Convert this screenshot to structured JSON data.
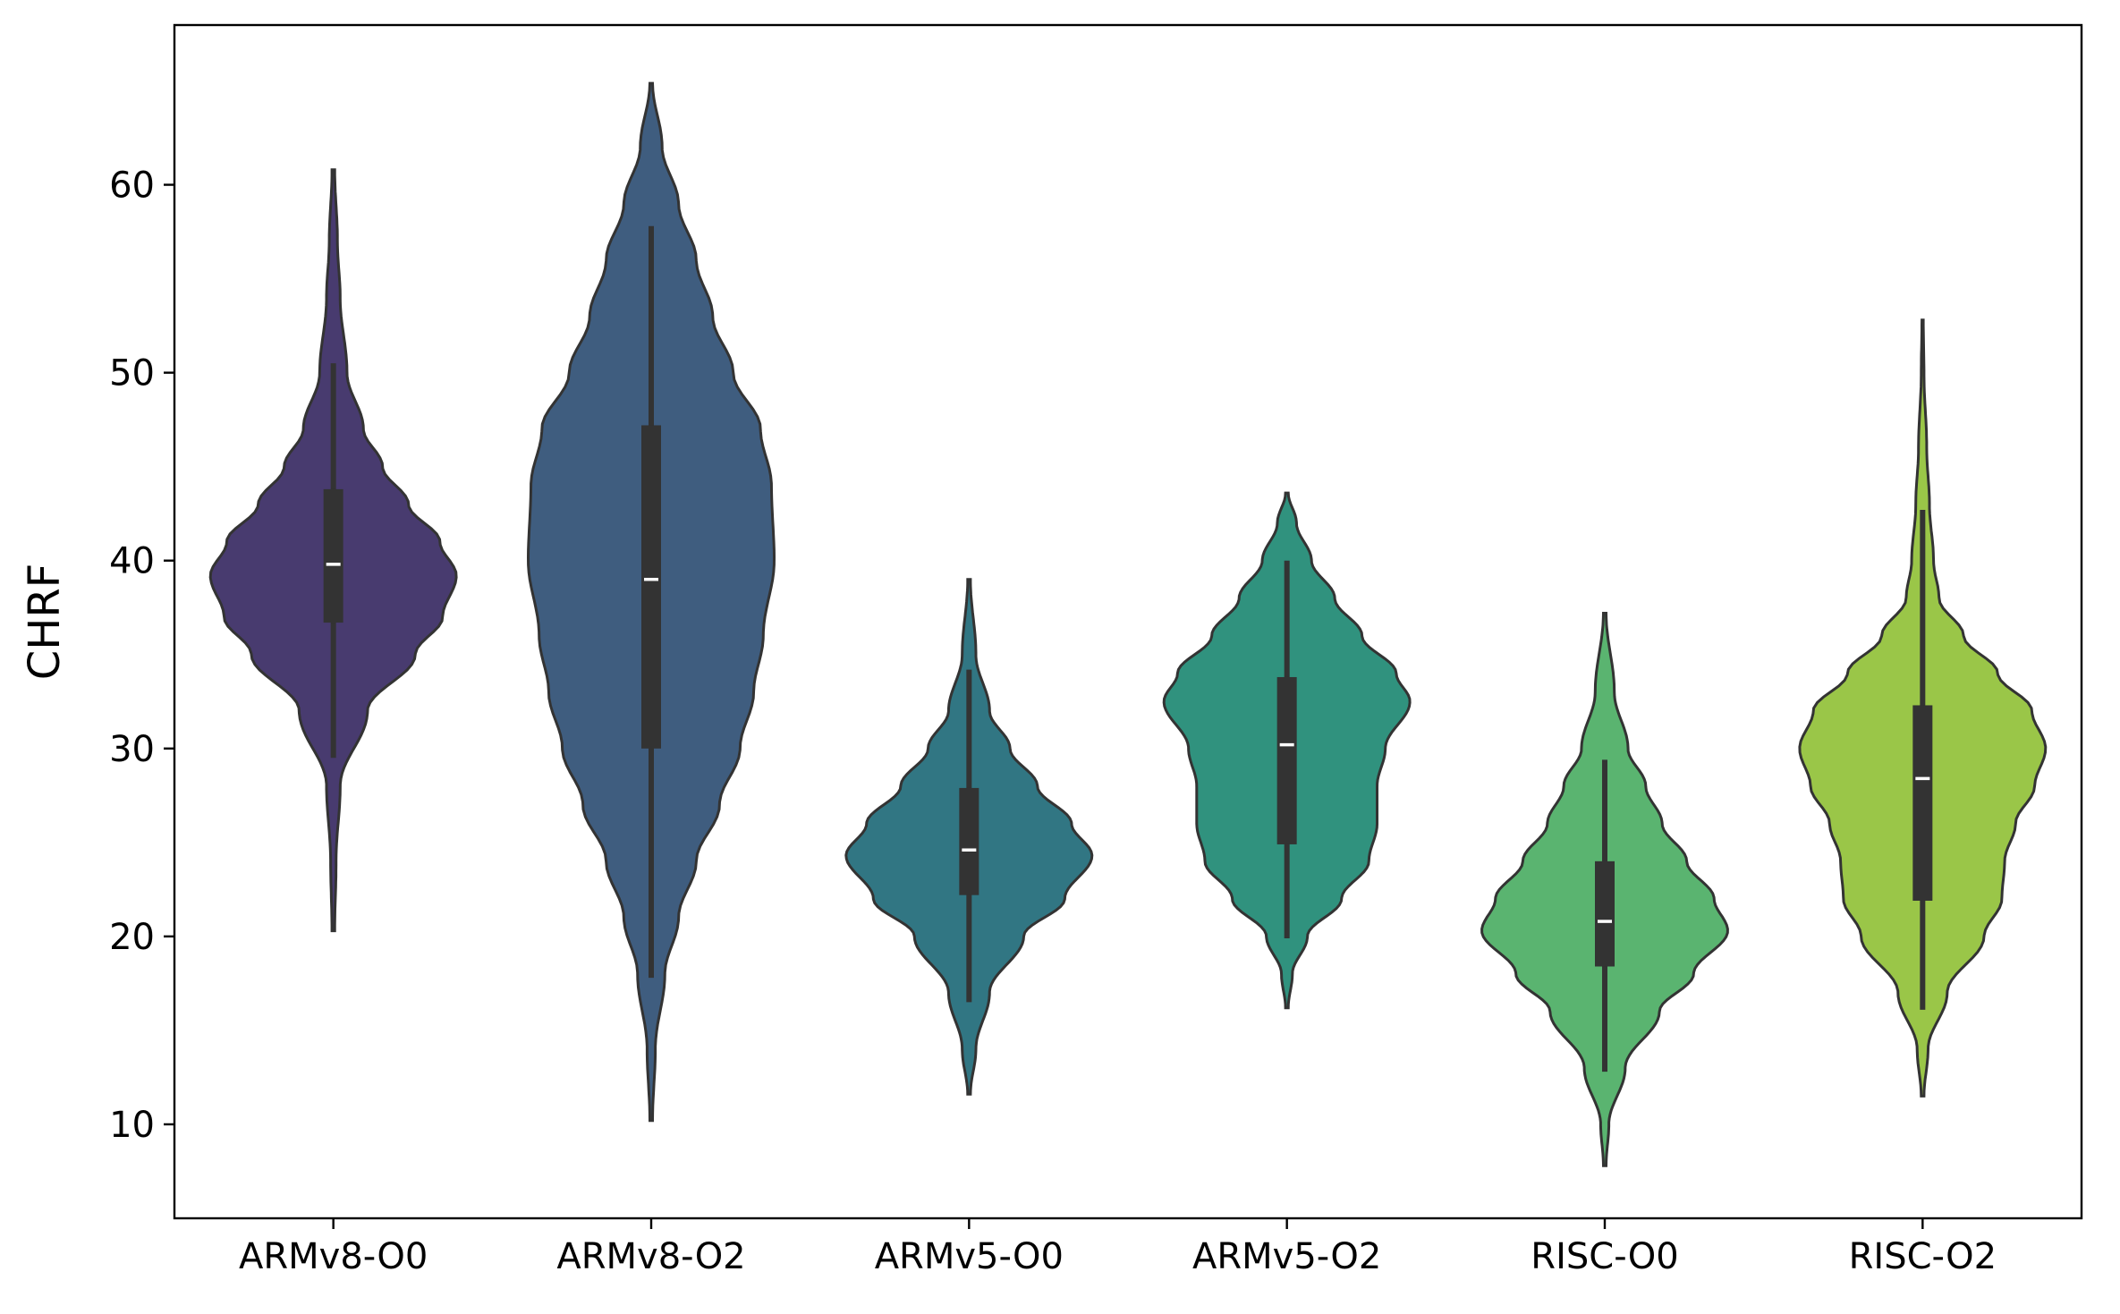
{
  "chart_data": {
    "type": "violin",
    "title": "",
    "xlabel": "",
    "ylabel": "CHRF",
    "ylim": [
      5,
      68.5
    ],
    "yticks": [
      10,
      20,
      30,
      40,
      50,
      60
    ],
    "grid": false,
    "legend": "none",
    "categories": [
      "ARMv8-O0",
      "ARMv8-O2",
      "ARMv5-O0",
      "ARMv5-O2",
      "RISC-O0",
      "RISC-O2"
    ],
    "colors": [
      "#483b6f",
      "#3f5d7f",
      "#317683",
      "#30927e",
      "#5ab470",
      "#9ac648"
    ],
    "series": [
      {
        "category": "ARMv8-O0",
        "min": 20.3,
        "max": 60.8,
        "whisker_low": 29.5,
        "whisker_high": 50.5,
        "q1": 36.7,
        "median": 39.8,
        "q3": 43.8,
        "density": [
          [
            20.3,
            0.01
          ],
          [
            24,
            0.02
          ],
          [
            28,
            0.05
          ],
          [
            32,
            0.25
          ],
          [
            35,
            0.6
          ],
          [
            37,
            0.8
          ],
          [
            39.2,
            0.9
          ],
          [
            41,
            0.78
          ],
          [
            43,
            0.55
          ],
          [
            45,
            0.36
          ],
          [
            47,
            0.22
          ],
          [
            50,
            0.1
          ],
          [
            54,
            0.05
          ],
          [
            57,
            0.03
          ],
          [
            60.8,
            0.01
          ]
        ]
      },
      {
        "category": "ARMv8-O2",
        "min": 10.2,
        "max": 65.4,
        "whisker_low": 17.8,
        "whisker_high": 57.8,
        "q1": 30.0,
        "median": 39.0,
        "q3": 47.2,
        "density": [
          [
            10.2,
            0.01
          ],
          [
            14,
            0.03
          ],
          [
            18,
            0.1
          ],
          [
            21,
            0.2
          ],
          [
            24,
            0.33
          ],
          [
            27,
            0.5
          ],
          [
            30,
            0.65
          ],
          [
            33,
            0.75
          ],
          [
            36,
            0.82
          ],
          [
            40,
            0.9
          ],
          [
            44,
            0.88
          ],
          [
            47,
            0.8
          ],
          [
            50,
            0.6
          ],
          [
            53,
            0.45
          ],
          [
            56,
            0.33
          ],
          [
            59,
            0.2
          ],
          [
            62,
            0.08
          ],
          [
            65.4,
            0.01
          ]
        ]
      },
      {
        "category": "ARMv5-O0",
        "min": 11.6,
        "max": 39.0,
        "whisker_low": 16.5,
        "whisker_high": 34.2,
        "q1": 22.2,
        "median": 24.6,
        "q3": 27.9,
        "density": [
          [
            11.6,
            0.01
          ],
          [
            14,
            0.05
          ],
          [
            17,
            0.15
          ],
          [
            20,
            0.4
          ],
          [
            22,
            0.7
          ],
          [
            24.3,
            0.9
          ],
          [
            26,
            0.75
          ],
          [
            28,
            0.5
          ],
          [
            30,
            0.3
          ],
          [
            32,
            0.15
          ],
          [
            35,
            0.05
          ],
          [
            39,
            0.01
          ]
        ]
      },
      {
        "category": "ARMv5-O2",
        "min": 16.2,
        "max": 43.6,
        "whisker_low": 19.9,
        "whisker_high": 40.0,
        "q1": 24.9,
        "median": 30.2,
        "q3": 33.8,
        "density": [
          [
            16.2,
            0.01
          ],
          [
            18,
            0.04
          ],
          [
            20,
            0.15
          ],
          [
            22,
            0.4
          ],
          [
            24,
            0.6
          ],
          [
            26,
            0.66
          ],
          [
            28,
            0.66
          ],
          [
            30,
            0.72
          ],
          [
            32.5,
            0.9
          ],
          [
            34,
            0.8
          ],
          [
            36,
            0.55
          ],
          [
            38,
            0.35
          ],
          [
            40,
            0.18
          ],
          [
            42,
            0.07
          ],
          [
            43.6,
            0.01
          ]
        ]
      },
      {
        "category": "RISC-O0",
        "min": 7.8,
        "max": 37.2,
        "whisker_low": 12.8,
        "whisker_high": 29.4,
        "q1": 18.4,
        "median": 20.8,
        "q3": 24.0,
        "density": [
          [
            7.8,
            0.01
          ],
          [
            10,
            0.03
          ],
          [
            13,
            0.15
          ],
          [
            16,
            0.4
          ],
          [
            18,
            0.65
          ],
          [
            20.3,
            0.9
          ],
          [
            22,
            0.8
          ],
          [
            24,
            0.6
          ],
          [
            26,
            0.42
          ],
          [
            28,
            0.3
          ],
          [
            30,
            0.17
          ],
          [
            33,
            0.07
          ],
          [
            37.2,
            0.01
          ]
        ]
      },
      {
        "category": "RISC-O2",
        "min": 11.5,
        "max": 52.8,
        "whisker_low": 16.1,
        "whisker_high": 42.7,
        "q1": 21.9,
        "median": 28.4,
        "q3": 32.3,
        "density": [
          [
            11.5,
            0.01
          ],
          [
            14,
            0.04
          ],
          [
            17,
            0.18
          ],
          [
            20,
            0.45
          ],
          [
            22,
            0.58
          ],
          [
            24,
            0.6
          ],
          [
            26,
            0.68
          ],
          [
            28,
            0.82
          ],
          [
            30,
            0.9
          ],
          [
            32,
            0.8
          ],
          [
            34,
            0.55
          ],
          [
            36,
            0.3
          ],
          [
            38,
            0.12
          ],
          [
            40,
            0.08
          ],
          [
            43,
            0.05
          ],
          [
            46,
            0.03
          ],
          [
            50,
            0.01
          ],
          [
            52.8,
            0.005
          ]
        ]
      }
    ]
  }
}
